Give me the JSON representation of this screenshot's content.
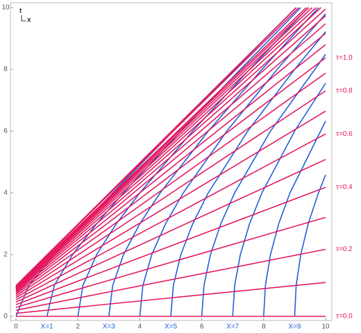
{
  "chart_data": {
    "type": "line",
    "axis_label_t": "t",
    "axis_label_x": "x",
    "xlim": [
      0,
      10
    ],
    "ylim": [
      0,
      10
    ],
    "xticks": [
      0,
      2,
      4,
      6,
      8,
      10
    ],
    "yticks": [
      0,
      2,
      4,
      6,
      8,
      10
    ],
    "tau_lines": {
      "color": "#e4195f",
      "series": [
        {
          "label": "τ=0.0",
          "x": [
            0,
            10
          ],
          "values": [
            0,
            0
          ]
        },
        {
          "x": [
            0,
            10
          ],
          "values": [
            0.0997,
            1.097
          ]
        },
        {
          "label": "τ=0.2",
          "x": [
            0,
            10
          ],
          "values": [
            0.1974,
            2.171
          ]
        },
        {
          "x": [
            0,
            10
          ],
          "values": [
            0.2913,
            3.204
          ]
        },
        {
          "label": "τ=0.4",
          "x": [
            0,
            10
          ],
          "values": [
            0.3799,
            4.179
          ]
        },
        {
          "x": [
            0,
            10
          ],
          "values": [
            0.4621,
            5.083
          ]
        },
        {
          "label": "τ=0.6",
          "x": [
            0,
            10
          ],
          "values": [
            0.537,
            5.907
          ]
        },
        {
          "x": [
            0,
            10
          ],
          "values": [
            0.6044,
            6.648
          ]
        },
        {
          "label": "τ=0.8",
          "x": [
            0,
            10
          ],
          "values": [
            0.664,
            7.304
          ]
        },
        {
          "x": [
            0,
            10
          ],
          "values": [
            0.7163,
            7.879
          ]
        },
        {
          "label": "τ=1.0",
          "x": [
            0,
            10
          ],
          "values": [
            0.7616,
            8.377
          ]
        },
        {
          "x": [
            0,
            10
          ],
          "values": [
            0.8005,
            8.805
          ]
        },
        {
          "x": [
            0,
            10
          ],
          "values": [
            0.8337,
            9.17
          ]
        },
        {
          "x": [
            0,
            10
          ],
          "values": [
            0.8617,
            9.479
          ]
        },
        {
          "x": [
            0,
            10
          ],
          "values": [
            0.8854,
            9.739
          ]
        },
        {
          "x": [
            0,
            10
          ],
          "values": [
            0.9051,
            9.956
          ]
        },
        {
          "x": [
            0,
            9.85
          ],
          "values": [
            0.9217,
            10
          ]
        },
        {
          "x": [
            0,
            9.691
          ],
          "values": [
            0.9354,
            10
          ]
        },
        {
          "x": [
            0,
            9.562
          ],
          "values": [
            0.9468,
            10
          ]
        },
        {
          "x": [
            0,
            9.458
          ],
          "values": [
            0.9562,
            10
          ]
        },
        {
          "x": [
            0,
            9.373
          ],
          "values": [
            0.964,
            10
          ]
        },
        {
          "x": [
            0,
            9.136
          ],
          "values": [
            0.9866,
            10
          ]
        },
        {
          "x": [
            0,
            9.049
          ],
          "values": [
            0.9951,
            10
          ]
        }
      ]
    },
    "x_curves": {
      "color": "#1f5fd8",
      "series": [
        {
          "x": [
            0,
            0.414,
            1.236,
            2.162,
            3.123,
            5.083,
            7.062,
            9.05
          ],
          "values": [
            0,
            1,
            2,
            3,
            4,
            6,
            8,
            10
          ]
        },
        {
          "label": "X=1",
          "x": [
            1,
            1.236,
            1.828,
            2.606,
            3.472,
            5.325,
            7.246,
            9.198
          ],
          "values": [
            0,
            1,
            2,
            3,
            4,
            6,
            8,
            10
          ]
        },
        {
          "x": [
            2,
            2.162,
            2.606,
            3.243,
            4,
            5.708,
            7.544,
            9.44
          ],
          "values": [
            0,
            1,
            2,
            3,
            4,
            6,
            8,
            10
          ]
        },
        {
          "label": "X=3",
          "x": [
            3,
            3.123,
            3.472,
            4,
            4.657,
            6.211,
            7.944,
            9.77
          ],
          "values": [
            0,
            1,
            2,
            3,
            4,
            6,
            8,
            10
          ]
        },
        {
          "x": [
            4,
            4.099,
            4.385,
            4.831,
            5.403,
            6.81,
            8.434,
            10
          ],
          "values": [
            0,
            1,
            2,
            3,
            4,
            6,
            8,
            9.798
          ]
        },
        {
          "label": "X=5",
          "x": [
            5,
            5.083,
            5.325,
            5.708,
            6.211,
            7.485,
            9,
            10
          ],
          "values": [
            0,
            1,
            2,
            3,
            4,
            6,
            8,
            9.22
          ]
        },
        {
          "x": [
            6,
            6.071,
            6.28,
            6.616,
            7.062,
            8.22,
            10
          ],
          "values": [
            0,
            1,
            2,
            3,
            4,
            6,
            8.485
          ]
        },
        {
          "label": "X=7",
          "x": [
            7,
            7.062,
            7.246,
            7.544,
            7.944,
            9,
            10
          ],
          "values": [
            0,
            1,
            2,
            3,
            4,
            6,
            7.55
          ]
        },
        {
          "x": [
            8,
            8.055,
            8.22,
            8.487,
            8.849,
            10
          ],
          "values": [
            0,
            1,
            2,
            3,
            4,
            6.325
          ]
        },
        {
          "label": "X=9",
          "x": [
            9,
            9.05,
            9.198,
            9.44,
            9.77,
            10
          ],
          "values": [
            0,
            1,
            2,
            3,
            4,
            4.583
          ]
        }
      ]
    }
  }
}
